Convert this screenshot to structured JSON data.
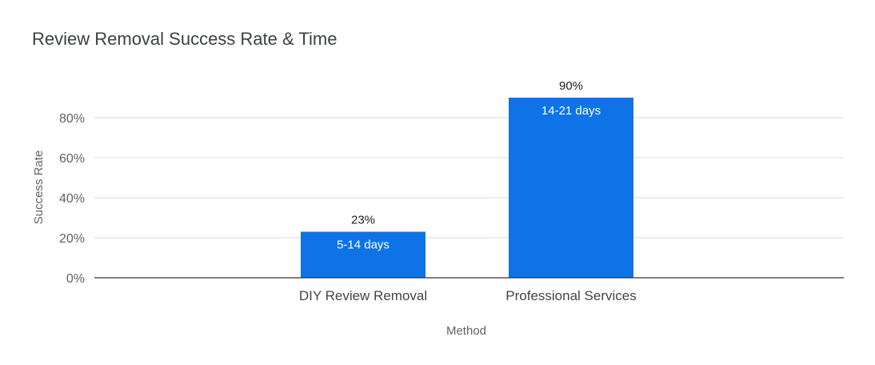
{
  "chart_data": {
    "type": "bar",
    "title": "Review Removal Success Rate & Time",
    "xlabel": "Method",
    "ylabel": "Success Rate",
    "categories": [
      "DIY Review Removal",
      "Professional Services"
    ],
    "values": [
      23,
      90
    ],
    "value_labels": [
      "23%",
      "90%"
    ],
    "inner_labels": [
      "5-14 days",
      "14-21 days"
    ],
    "ylim": [
      0,
      90
    ],
    "yticks": [
      0,
      20,
      40,
      60,
      80
    ],
    "ytick_labels": [
      "0%",
      "20%",
      "40%",
      "60%",
      "80%"
    ],
    "grid": true,
    "legend": "none",
    "bar_color": "#0f73e8"
  }
}
